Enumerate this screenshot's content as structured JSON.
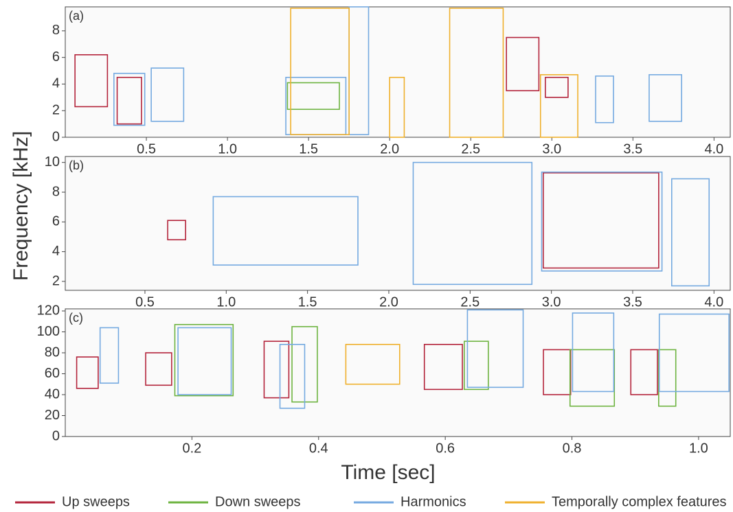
{
  "chart_data": [
    {
      "type": "spectrogram",
      "label": "(a)",
      "xlim": [
        0,
        4.1
      ],
      "xticks": [
        0.5,
        {
          "value": 1.0,
          "label": "1.0"
        },
        1.5,
        {
          "value": 2.0,
          "label": "2.0"
        },
        2.5,
        {
          "value": 3.0,
          "label": "3.0"
        },
        3.5,
        {
          "value": 4.0,
          "label": "4.0"
        }
      ],
      "ylim": [
        0,
        9.8
      ],
      "yticks": [
        0,
        2,
        4,
        6,
        8
      ],
      "boxes": [
        [
          {
            "x": [
              0.06,
              0.26
            ],
            "y": [
              2.3,
              6.2
            ]
          },
          {
            "x": [
              0.32,
              0.47
            ],
            "y": [
              1.0,
              4.5
            ]
          },
          {
            "x": [
              2.72,
              2.92
            ],
            "y": [
              3.5,
              7.5
            ]
          },
          {
            "x": [
              2.96,
              3.1
            ],
            "y": [
              3.0,
              4.5
            ]
          }
        ],
        [
          {
            "x": [
              1.37,
              1.69
            ],
            "y": [
              2.1,
              4.1
            ]
          }
        ],
        [
          {
            "x": [
              0.3,
              0.49
            ],
            "y": [
              0.9,
              4.8
            ]
          },
          {
            "x": [
              0.53,
              0.73
            ],
            "y": [
              1.2,
              5.2
            ]
          },
          {
            "x": [
              1.36,
              1.73
            ],
            "y": [
              0.2,
              4.5
            ]
          },
          {
            "x": [
              1.75,
              1.87
            ],
            "y": [
              0.2,
              9.8
            ]
          },
          {
            "x": [
              3.27,
              3.38
            ],
            "y": [
              1.1,
              4.6
            ]
          },
          {
            "x": [
              3.6,
              3.8
            ],
            "y": [
              1.2,
              4.7
            ]
          }
        ],
        [
          {
            "x": [
              1.39,
              1.75
            ],
            "y": [
              0.2,
              9.7
            ]
          },
          {
            "x": [
              2.0,
              2.09
            ],
            "y": [
              0,
              4.5
            ]
          },
          {
            "x": [
              2.37,
              2.7
            ],
            "y": [
              0,
              9.7
            ]
          },
          {
            "x": [
              2.93,
              3.16
            ],
            "y": [
              0,
              4.7
            ]
          }
        ]
      ]
    },
    {
      "type": "spectrogram",
      "label": "(b)",
      "xlim": [
        0.01,
        4.1
      ],
      "xticks": [
        0.5,
        {
          "value": 1.0,
          "label": "1.0"
        },
        1.5,
        {
          "value": 2.0,
          "label": "2.0"
        },
        2.5,
        {
          "value": 3.0,
          "label": "3.0"
        },
        3.5,
        {
          "value": 4.0,
          "label": "4.0"
        }
      ],
      "ylim": [
        1.4,
        10.4
      ],
      "yticks": [
        2,
        4,
        6,
        8,
        10
      ],
      "boxes": [
        [
          {
            "x": [
              0.64,
              0.75
            ],
            "y": [
              4.8,
              6.1
            ]
          },
          {
            "x": [
              2.95,
              3.66
            ],
            "y": [
              2.9,
              9.3
            ]
          }
        ],
        [],
        [
          {
            "x": [
              0.92,
              1.81
            ],
            "y": [
              3.1,
              7.7
            ]
          },
          {
            "x": [
              2.15,
              2.88
            ],
            "y": [
              1.8,
              10.0
            ]
          },
          {
            "x": [
              2.94,
              3.68
            ],
            "y": [
              2.7,
              9.35
            ]
          },
          {
            "x": [
              3.74,
              3.97
            ],
            "y": [
              1.7,
              8.9
            ]
          }
        ],
        []
      ]
    },
    {
      "type": "spectrogram",
      "label": "(c)",
      "xlim": [
        0,
        1.05
      ],
      "xticks": [
        0.2,
        0.4,
        0.6,
        0.8,
        {
          "value": 1.0,
          "label": "1.0"
        }
      ],
      "ylim": [
        0,
        122
      ],
      "yticks": [
        0,
        20,
        40,
        60,
        80,
        100,
        120
      ],
      "boxes": [
        [
          {
            "x": [
              0.018,
              0.052
            ],
            "y": [
              46,
              76
            ]
          },
          {
            "x": [
              0.127,
              0.168
            ],
            "y": [
              49,
              80
            ]
          },
          {
            "x": [
              0.314,
              0.353
            ],
            "y": [
              37,
              91
            ]
          },
          {
            "x": [
              0.567,
              0.627
            ],
            "y": [
              45,
              88
            ]
          },
          {
            "x": [
              0.755,
              0.798
            ],
            "y": [
              40,
              83
            ]
          },
          {
            "x": [
              0.893,
              0.935
            ],
            "y": [
              40,
              83
            ]
          }
        ],
        [
          {
            "x": [
              0.173,
              0.265
            ],
            "y": [
              39,
              107
            ]
          },
          {
            "x": [
              0.358,
              0.398
            ],
            "y": [
              33,
              105
            ]
          },
          {
            "x": [
              0.63,
              0.668
            ],
            "y": [
              45,
              91
            ]
          },
          {
            "x": [
              0.797,
              0.867
            ],
            "y": [
              29,
              83
            ]
          },
          {
            "x": [
              0.937,
              0.964
            ],
            "y": [
              29,
              83
            ]
          }
        ],
        [
          {
            "x": [
              0.055,
              0.084
            ],
            "y": [
              51,
              104
            ]
          },
          {
            "x": [
              0.178,
              0.262
            ],
            "y": [
              40,
              104
            ]
          },
          {
            "x": [
              0.339,
              0.378
            ],
            "y": [
              27,
              88
            ]
          },
          {
            "x": [
              0.635,
              0.723
            ],
            "y": [
              47,
              121
            ]
          },
          {
            "x": [
              0.801,
              0.866
            ],
            "y": [
              43,
              118
            ]
          },
          {
            "x": [
              0.938,
              1.048
            ],
            "y": [
              43,
              117
            ]
          }
        ],
        [
          {
            "x": [
              0.443,
              0.528
            ],
            "y": [
              50,
              88
            ]
          }
        ]
      ]
    }
  ],
  "ylabel": "Frequency [kHz]",
  "xlabel": "Time [sec]",
  "legend": [
    {
      "name": "Up sweeps",
      "color": "#b3233a"
    },
    {
      "name": "Down sweeps",
      "color": "#6db33f"
    },
    {
      "name": "Harmonics",
      "color": "#74a9e0"
    },
    {
      "name": "Temporally complex features",
      "color": "#efb02c"
    }
  ]
}
